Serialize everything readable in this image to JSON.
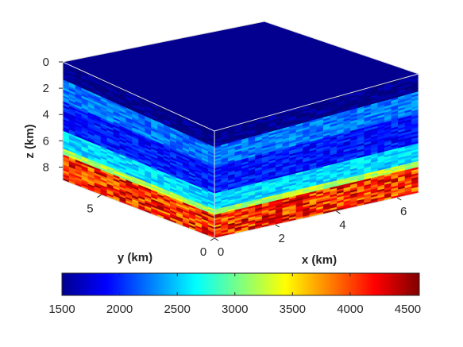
{
  "chart_data": {
    "type": "heatmap",
    "title": "",
    "z_axis": {
      "label": "z (km)",
      "ticks": [
        "0",
        "2",
        "4",
        "6",
        "8"
      ],
      "range": [
        0,
        9
      ],
      "direction": "down"
    },
    "y_axis": {
      "label": "y (km)",
      "ticks": [
        "0",
        "5"
      ],
      "range": [
        0,
        6.7
      ]
    },
    "x_axis": {
      "label": "x (km)",
      "ticks": [
        "0",
        "2",
        "4",
        "6"
      ],
      "range": [
        0,
        6.7
      ]
    },
    "colorbar": {
      "colormap": "jet",
      "placement": "bottom",
      "ticks": [
        "1500",
        "2000",
        "2500",
        "3000",
        "3500",
        "4000",
        "4500"
      ],
      "range": [
        1500,
        4600
      ]
    },
    "layers": [
      {
        "z_top": 0.0,
        "z_bottom": 1.4,
        "value": 1500
      },
      {
        "z_top": 1.4,
        "z_bottom": 3.0,
        "value": 2250
      },
      {
        "z_top": 3.0,
        "z_bottom": 5.2,
        "value": 1950
      },
      {
        "z_top": 5.2,
        "z_bottom": 6.6,
        "value": 2550
      },
      {
        "z_top": 6.6,
        "z_bottom": 7.1,
        "value": 3200
      },
      {
        "z_top": 7.1,
        "z_bottom": 9.0,
        "value": 4100
      }
    ],
    "grid": false
  }
}
